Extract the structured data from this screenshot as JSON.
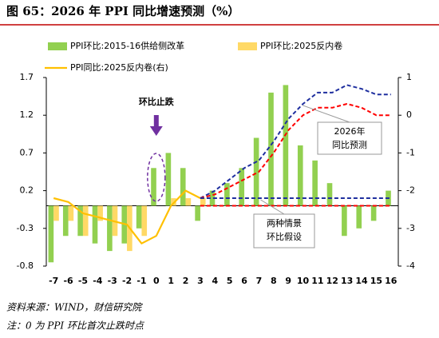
{
  "chart_data": {
    "type": "bar",
    "title": "图 65：2026 年 PPI 同比增速预测（%）",
    "categories": [
      "-7",
      "-6",
      "-5",
      "-4",
      "-3",
      "-2",
      "-1",
      "0",
      "1",
      "2",
      "3",
      "4",
      "5",
      "6",
      "7",
      "8",
      "9",
      "10",
      "11",
      "12",
      "13",
      "14",
      "15",
      "16"
    ],
    "ylim": [
      -0.8,
      1.7
    ],
    "yticks": [
      -0.8,
      -0.3,
      0.2,
      0.7,
      1.2,
      1.7
    ],
    "y2lim": [
      -4,
      1
    ],
    "y2ticks": [
      -4,
      -3,
      -2,
      -1,
      0,
      1
    ],
    "negative_label_color": "#ff0000",
    "series": [
      {
        "name": "PPI环比:2015-16供给侧改革",
        "type": "bar",
        "color": "#92d050",
        "values": [
          -0.75,
          -0.4,
          -0.4,
          -0.5,
          -0.6,
          -0.5,
          -0.3,
          0.5,
          0.7,
          0.5,
          -0.2,
          0.2,
          0.3,
          0.5,
          0.9,
          1.5,
          1.6,
          0.8,
          0.6,
          0.3,
          -0.4,
          -0.3,
          -0.2,
          0.2
        ]
      },
      {
        "name": "PPI环比:2025反内卷",
        "type": "bar",
        "color": "#ffd966",
        "values": [
          -0.2,
          -0.2,
          -0.4,
          -0.2,
          -0.4,
          -0.6,
          -0.4,
          0,
          0.1,
          0.1,
          0.1,
          null,
          null,
          null,
          null,
          null,
          null,
          null,
          null,
          null,
          null,
          null,
          null,
          null
        ]
      },
      {
        "name": "PPI同比:2025反内卷(右)",
        "type": "line",
        "axis": "y2",
        "color": "#ffc000",
        "values": [
          -2.2,
          -2.3,
          -2.6,
          -2.7,
          -2.8,
          -2.9,
          -3.4,
          -3.2,
          -2.4,
          -2.0,
          -2.2,
          null,
          null,
          null,
          null,
          null,
          null,
          null,
          null,
          null,
          null,
          null,
          null,
          null
        ]
      },
      {
        "type": "line",
        "axis": "y2",
        "color": "#1f2f9f",
        "dashed": true,
        "values": [
          null,
          null,
          null,
          null,
          null,
          null,
          null,
          null,
          null,
          null,
          -2.2,
          -2.0,
          -1.7,
          -1.4,
          -1.2,
          -0.7,
          -0.1,
          0.3,
          0.6,
          0.6,
          0.8,
          0.7,
          0.55,
          0.55
        ]
      },
      {
        "type": "line",
        "axis": "y2",
        "color": "#ff0000",
        "dashed": true,
        "values": [
          null,
          null,
          null,
          null,
          null,
          null,
          null,
          null,
          null,
          null,
          -2.2,
          -2.1,
          -1.9,
          -1.7,
          -1.5,
          -1.0,
          -0.4,
          0,
          0.2,
          0.2,
          0.3,
          0.2,
          0,
          0
        ]
      },
      {
        "type": "line",
        "color": "#1f2f9f",
        "dashed": true,
        "values": [
          null,
          null,
          null,
          null,
          null,
          null,
          null,
          null,
          null,
          null,
          0.1,
          0.1,
          0.1,
          0.1,
          0.1,
          0.1,
          0.1,
          0.1,
          0.1,
          0.1,
          0.1,
          0.1,
          0.1,
          0.1
        ]
      },
      {
        "type": "line",
        "color": "#ff0000",
        "dashed": true,
        "values": [
          null,
          null,
          null,
          null,
          null,
          null,
          null,
          null,
          null,
          null,
          0,
          0,
          0,
          0,
          0,
          0,
          0,
          0,
          0,
          0,
          0,
          0,
          0,
          0
        ]
      }
    ],
    "annotations": [
      {
        "text": "环比止跌",
        "color": "#7030a0"
      },
      {
        "text": [
          "2026年",
          "同比预测"
        ]
      },
      {
        "text": [
          "两种情景",
          "环比假设"
        ]
      }
    ],
    "source": "资料来源：WIND，财信研究院",
    "note": "注：0 为 PPI 环比首次止跌时点"
  }
}
